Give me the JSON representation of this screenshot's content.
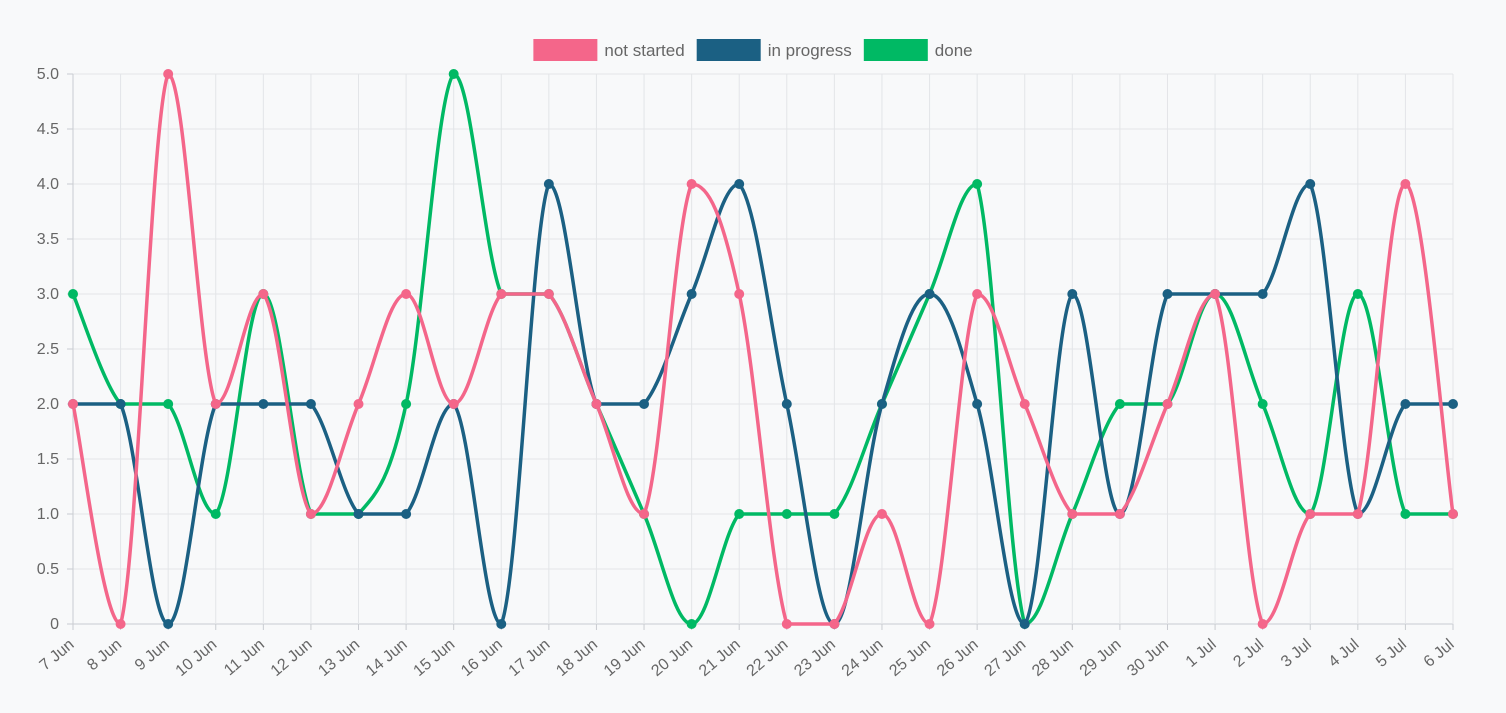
{
  "chart_data": {
    "type": "line",
    "title": "",
    "xlabel": "",
    "ylabel": "",
    "ylim": [
      0,
      5
    ],
    "yticks": [
      "0",
      "0.5",
      "1.0",
      "1.5",
      "2.0",
      "2.5",
      "3.0",
      "3.5",
      "4.0",
      "4.5",
      "5.0"
    ],
    "grid": true,
    "legend_position": "top-center",
    "categories": [
      "7 Jun",
      "8 Jun",
      "9 Jun",
      "10 Jun",
      "11 Jun",
      "12 Jun",
      "13 Jun",
      "14 Jun",
      "15 Jun",
      "16 Jun",
      "17 Jun",
      "18 Jun",
      "19 Jun",
      "20 Jun",
      "21 Jun",
      "22 Jun",
      "23 Jun",
      "24 Jun",
      "25 Jun",
      "26 Jun",
      "27 Jun",
      "28 Jun",
      "29 Jun",
      "30 Jun",
      "1 Jul",
      "2 Jul",
      "3 Jul",
      "4 Jul",
      "5 Jul",
      "6 Jul"
    ],
    "series": [
      {
        "name": "not started",
        "color": "#f4668a",
        "values": [
          2,
          0,
          5,
          2,
          3,
          1,
          2,
          3,
          2,
          3,
          3,
          2,
          1,
          4,
          3,
          0,
          0,
          1,
          0,
          3,
          2,
          1,
          1,
          2,
          3,
          0,
          1,
          1,
          4,
          1
        ]
      },
      {
        "name": "in progress",
        "color": "#1b6083",
        "values": [
          2,
          2,
          0,
          2,
          2,
          2,
          1,
          1,
          2,
          0,
          4,
          2,
          2,
          3,
          4,
          2,
          0,
          2,
          3,
          2,
          0,
          3,
          1,
          3,
          3,
          3,
          4,
          1,
          2,
          2
        ]
      },
      {
        "name": "done",
        "color": "#00b964",
        "values": [
          3,
          2,
          2,
          1,
          3,
          1,
          1,
          2,
          5,
          3,
          3,
          2,
          1,
          0,
          1,
          1,
          1,
          2,
          3,
          4,
          0,
          1,
          2,
          2,
          3,
          2,
          1,
          3,
          1,
          1
        ]
      }
    ]
  }
}
